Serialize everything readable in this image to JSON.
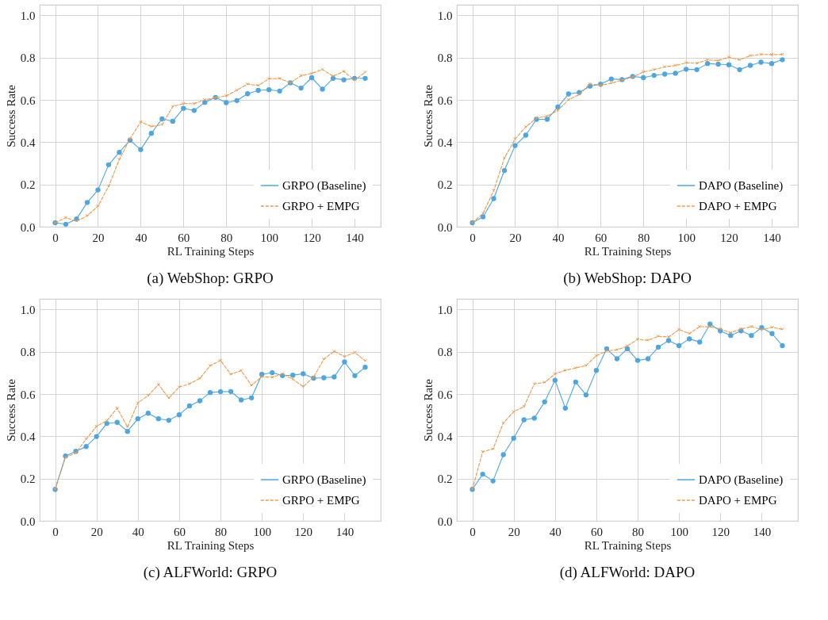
{
  "chart_data": [
    {
      "type": "line",
      "title": "(a) WebShop: GRPO",
      "xlabel": "RL Training Steps",
      "ylabel": "Success Rate",
      "x": [
        0,
        5,
        10,
        15,
        20,
        25,
        30,
        35,
        40,
        45,
        50,
        55,
        60,
        65,
        70,
        75,
        80,
        85,
        90,
        95,
        100,
        105,
        110,
        115,
        120,
        125,
        130,
        135,
        140,
        145
      ],
      "xlim": [
        -7.25,
        152.25
      ],
      "xticks": [
        0,
        20,
        40,
        60,
        80,
        100,
        120,
        140
      ],
      "ylim": [
        0,
        1.05
      ],
      "yticks": [
        {
          "value": 0,
          "label": "0.0"
        },
        {
          "value": 0.2,
          "label": "0.2"
        },
        {
          "value": 0.4,
          "label": "0.4"
        },
        {
          "value": 0.6,
          "label": "0.6"
        },
        {
          "value": 0.8,
          "label": "0.8"
        },
        {
          "value": 1,
          "label": "1.0"
        }
      ],
      "grid": true,
      "legend": "bottom right",
      "series": [
        {
          "name": "GRPO (Baseline)",
          "color": "#4ea6e0",
          "marker": "circle",
          "line_style": "solid",
          "values": [
            0.019,
            0.012,
            0.037,
            0.115,
            0.174,
            0.293,
            0.352,
            0.409,
            0.365,
            0.442,
            0.51,
            0.499,
            0.56,
            0.55,
            0.588,
            0.612,
            0.587,
            0.597,
            0.629,
            0.645,
            0.648,
            0.642,
            0.681,
            0.656,
            0.705,
            0.651,
            0.702,
            0.695,
            0.702,
            0.702
          ]
        },
        {
          "name": "GRPO + EMPG",
          "color": "#f0994a",
          "marker": "cross",
          "line_style": "dashed",
          "values": [
            0.019,
            0.043,
            0.026,
            0.052,
            0.097,
            0.191,
            0.318,
            0.416,
            0.496,
            0.474,
            0.482,
            0.569,
            0.582,
            0.582,
            0.6,
            0.61,
            0.619,
            0.646,
            0.675,
            0.668,
            0.7,
            0.701,
            0.681,
            0.714,
            0.725,
            0.744,
            0.712,
            0.735,
            0.693,
            0.731
          ]
        }
      ]
    },
    {
      "type": "line",
      "title": "(b) WebShop: DAPO",
      "xlabel": "RL Training Steps",
      "ylabel": "Success Rate",
      "x": [
        0,
        5,
        10,
        15,
        20,
        25,
        30,
        35,
        40,
        45,
        50,
        55,
        60,
        65,
        70,
        75,
        80,
        85,
        90,
        95,
        100,
        105,
        110,
        115,
        120,
        125,
        130,
        135,
        140,
        145
      ],
      "xlim": [
        -7.25,
        152.25
      ],
      "xticks": [
        0,
        20,
        40,
        60,
        80,
        100,
        120,
        140
      ],
      "ylim": [
        0,
        1.05
      ],
      "yticks": [
        {
          "value": 0,
          "label": "0.0"
        },
        {
          "value": 0.2,
          "label": "0.2"
        },
        {
          "value": 0.4,
          "label": "0.4"
        },
        {
          "value": 0.6,
          "label": "0.6"
        },
        {
          "value": 0.8,
          "label": "0.8"
        },
        {
          "value": 1,
          "label": "1.0"
        }
      ],
      "grid": true,
      "legend": "bottom right",
      "series": [
        {
          "name": "DAPO (Baseline)",
          "color": "#4ea6e0",
          "marker": "circle",
          "line_style": "solid",
          "values": [
            0.019,
            0.047,
            0.133,
            0.266,
            0.384,
            0.433,
            0.508,
            0.508,
            0.567,
            0.628,
            0.635,
            0.665,
            0.674,
            0.699,
            0.696,
            0.711,
            0.705,
            0.716,
            0.722,
            0.726,
            0.745,
            0.743,
            0.772,
            0.769,
            0.766,
            0.743,
            0.763,
            0.778,
            0.772,
            0.79
          ]
        },
        {
          "name": "DAPO + EMPG",
          "color": "#f0994a",
          "marker": "cross",
          "line_style": "dashed",
          "values": [
            0.019,
            0.063,
            0.171,
            0.325,
            0.415,
            0.472,
            0.514,
            0.523,
            0.55,
            0.601,
            0.625,
            0.676,
            0.669,
            0.679,
            0.693,
            0.708,
            0.732,
            0.743,
            0.756,
            0.763,
            0.775,
            0.773,
            0.789,
            0.786,
            0.802,
            0.789,
            0.809,
            0.815,
            0.814,
            0.815
          ]
        }
      ]
    },
    {
      "type": "line",
      "title": "(c) ALFWorld: GRPO",
      "xlabel": "RL Training Steps",
      "ylabel": "Success Rate",
      "x": [
        0,
        5,
        10,
        15,
        20,
        25,
        30,
        35,
        40,
        45,
        50,
        55,
        60,
        65,
        70,
        75,
        80,
        85,
        90,
        95,
        100,
        105,
        110,
        115,
        120,
        125,
        130,
        135,
        140,
        145,
        150
      ],
      "xlim": [
        -7.5,
        157.5
      ],
      "xticks": [
        0,
        20,
        40,
        60,
        80,
        100,
        120,
        140
      ],
      "ylim": [
        0,
        1.05
      ],
      "yticks": [
        {
          "value": 0,
          "label": "0.0"
        },
        {
          "value": 0.2,
          "label": "0.2"
        },
        {
          "value": 0.4,
          "label": "0.4"
        },
        {
          "value": 0.6,
          "label": "0.6"
        },
        {
          "value": 0.8,
          "label": "0.8"
        },
        {
          "value": 1,
          "label": "1.0"
        }
      ],
      "grid": true,
      "legend": "bottom right",
      "series": [
        {
          "name": "GRPO (Baseline)",
          "color": "#4ea6e0",
          "marker": "circle",
          "line_style": "solid",
          "values": [
            0.149,
            0.307,
            0.329,
            0.352,
            0.399,
            0.461,
            0.466,
            0.423,
            0.483,
            0.509,
            0.483,
            0.476,
            0.502,
            0.544,
            0.568,
            0.607,
            0.611,
            0.612,
            0.572,
            0.582,
            0.693,
            0.701,
            0.687,
            0.689,
            0.696,
            0.675,
            0.677,
            0.681,
            0.752,
            0.687,
            0.727
          ]
        },
        {
          "name": "GRPO + EMPG",
          "color": "#f0994a",
          "marker": "cross",
          "line_style": "dashed",
          "values": [
            0.149,
            0.3,
            0.321,
            0.387,
            0.447,
            0.474,
            0.533,
            0.444,
            0.558,
            0.593,
            0.645,
            0.581,
            0.633,
            0.648,
            0.674,
            0.734,
            0.759,
            0.693,
            0.711,
            0.641,
            0.682,
            0.679,
            0.696,
            0.67,
            0.635,
            0.68,
            0.765,
            0.802,
            0.777,
            0.797,
            0.757
          ]
        }
      ]
    },
    {
      "type": "line",
      "title": "(d) ALFWorld: DAPO",
      "xlabel": "RL Training Steps",
      "ylabel": "Success Rate",
      "x": [
        0,
        5,
        10,
        15,
        20,
        25,
        30,
        35,
        40,
        45,
        50,
        55,
        60,
        65,
        70,
        75,
        80,
        85,
        90,
        95,
        100,
        105,
        110,
        115,
        120,
        125,
        130,
        135,
        140,
        145,
        150
      ],
      "xlim": [
        -7.5,
        157.5
      ],
      "xticks": [
        0,
        20,
        40,
        60,
        80,
        100,
        120,
        140
      ],
      "ylim": [
        0,
        1.05
      ],
      "yticks": [
        {
          "value": 0,
          "label": "0.0"
        },
        {
          "value": 0.2,
          "label": "0.2"
        },
        {
          "value": 0.4,
          "label": "0.4"
        },
        {
          "value": 0.6,
          "label": "0.6"
        },
        {
          "value": 0.8,
          "label": "0.8"
        },
        {
          "value": 1,
          "label": "1.0"
        }
      ],
      "grid": true,
      "legend": "bottom right",
      "series": [
        {
          "name": "DAPO (Baseline)",
          "color": "#4ea6e0",
          "marker": "circle",
          "line_style": "solid",
          "values": [
            0.149,
            0.221,
            0.189,
            0.313,
            0.391,
            0.478,
            0.486,
            0.563,
            0.665,
            0.533,
            0.657,
            0.596,
            0.712,
            0.814,
            0.767,
            0.814,
            0.759,
            0.767,
            0.822,
            0.853,
            0.829,
            0.861,
            0.846,
            0.931,
            0.899,
            0.877,
            0.899,
            0.877,
            0.914,
            0.886,
            0.829
          ]
        },
        {
          "name": "DAPO + EMPG",
          "color": "#f0994a",
          "marker": "cross",
          "line_style": "dashed",
          "values": [
            0.149,
            0.327,
            0.34,
            0.463,
            0.516,
            0.541,
            0.648,
            0.655,
            0.695,
            0.712,
            0.723,
            0.735,
            0.781,
            0.804,
            0.809,
            0.827,
            0.859,
            0.854,
            0.873,
            0.87,
            0.905,
            0.886,
            0.919,
            0.918,
            0.908,
            0.89,
            0.908,
            0.919,
            0.905,
            0.915,
            0.906
          ]
        }
      ]
    }
  ]
}
